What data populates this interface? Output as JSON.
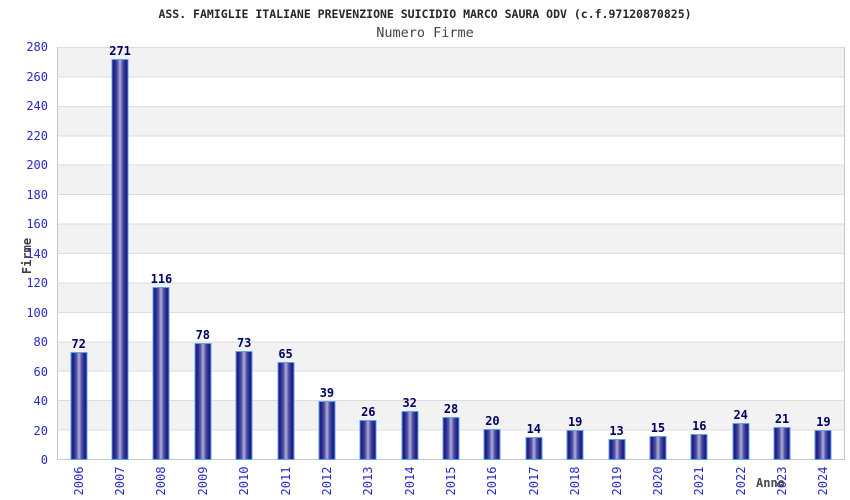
{
  "header": {
    "title": "ASS. FAMIGLIE ITALIANE PREVENZIONE SUICIDIO MARCO SAURA ODV (c.f.97120870825)",
    "subtitle": "Numero Firme"
  },
  "chart_data": {
    "type": "bar",
    "title": "ASS. FAMIGLIE ITALIANE PREVENZIONE SUICIDIO MARCO SAURA ODV (c.f.97120870825)",
    "subtitle": "Numero Firme",
    "xlabel": "Anno",
    "ylabel": "Firme",
    "categories": [
      "2006",
      "2007",
      "2008",
      "2009",
      "2010",
      "2011",
      "2012",
      "2013",
      "2014",
      "2015",
      "2016",
      "2017",
      "2018",
      "2019",
      "2020",
      "2021",
      "2022",
      "2023",
      "2024"
    ],
    "values": [
      72,
      271,
      116,
      78,
      73,
      65,
      39,
      26,
      32,
      28,
      20,
      14,
      19,
      13,
      15,
      16,
      24,
      21,
      19
    ],
    "ylim": [
      0,
      280
    ],
    "yticks": [
      0,
      20,
      40,
      60,
      80,
      100,
      120,
      140,
      160,
      180,
      200,
      220,
      240,
      260,
      280
    ],
    "grid": "horizontal gridlines with alternating gray/white bands every 20 units",
    "legend_position": "none",
    "value_labels": "above each bar",
    "x_tick_rotation": -90,
    "colors": {
      "tick_label": "#2929cc",
      "value_label": "#000060",
      "bar_edge": "#17177f",
      "bar_center": "#a5a5d6",
      "bar_border": "#5ca2ee",
      "band_gray": "#f2f2f2",
      "band_white": "#ffffff",
      "gridline": "#dcdcdc",
      "axis_border": "#c9c9c9",
      "title_text": "#26262b",
      "axis_title_text": "#3d3d3d"
    }
  }
}
